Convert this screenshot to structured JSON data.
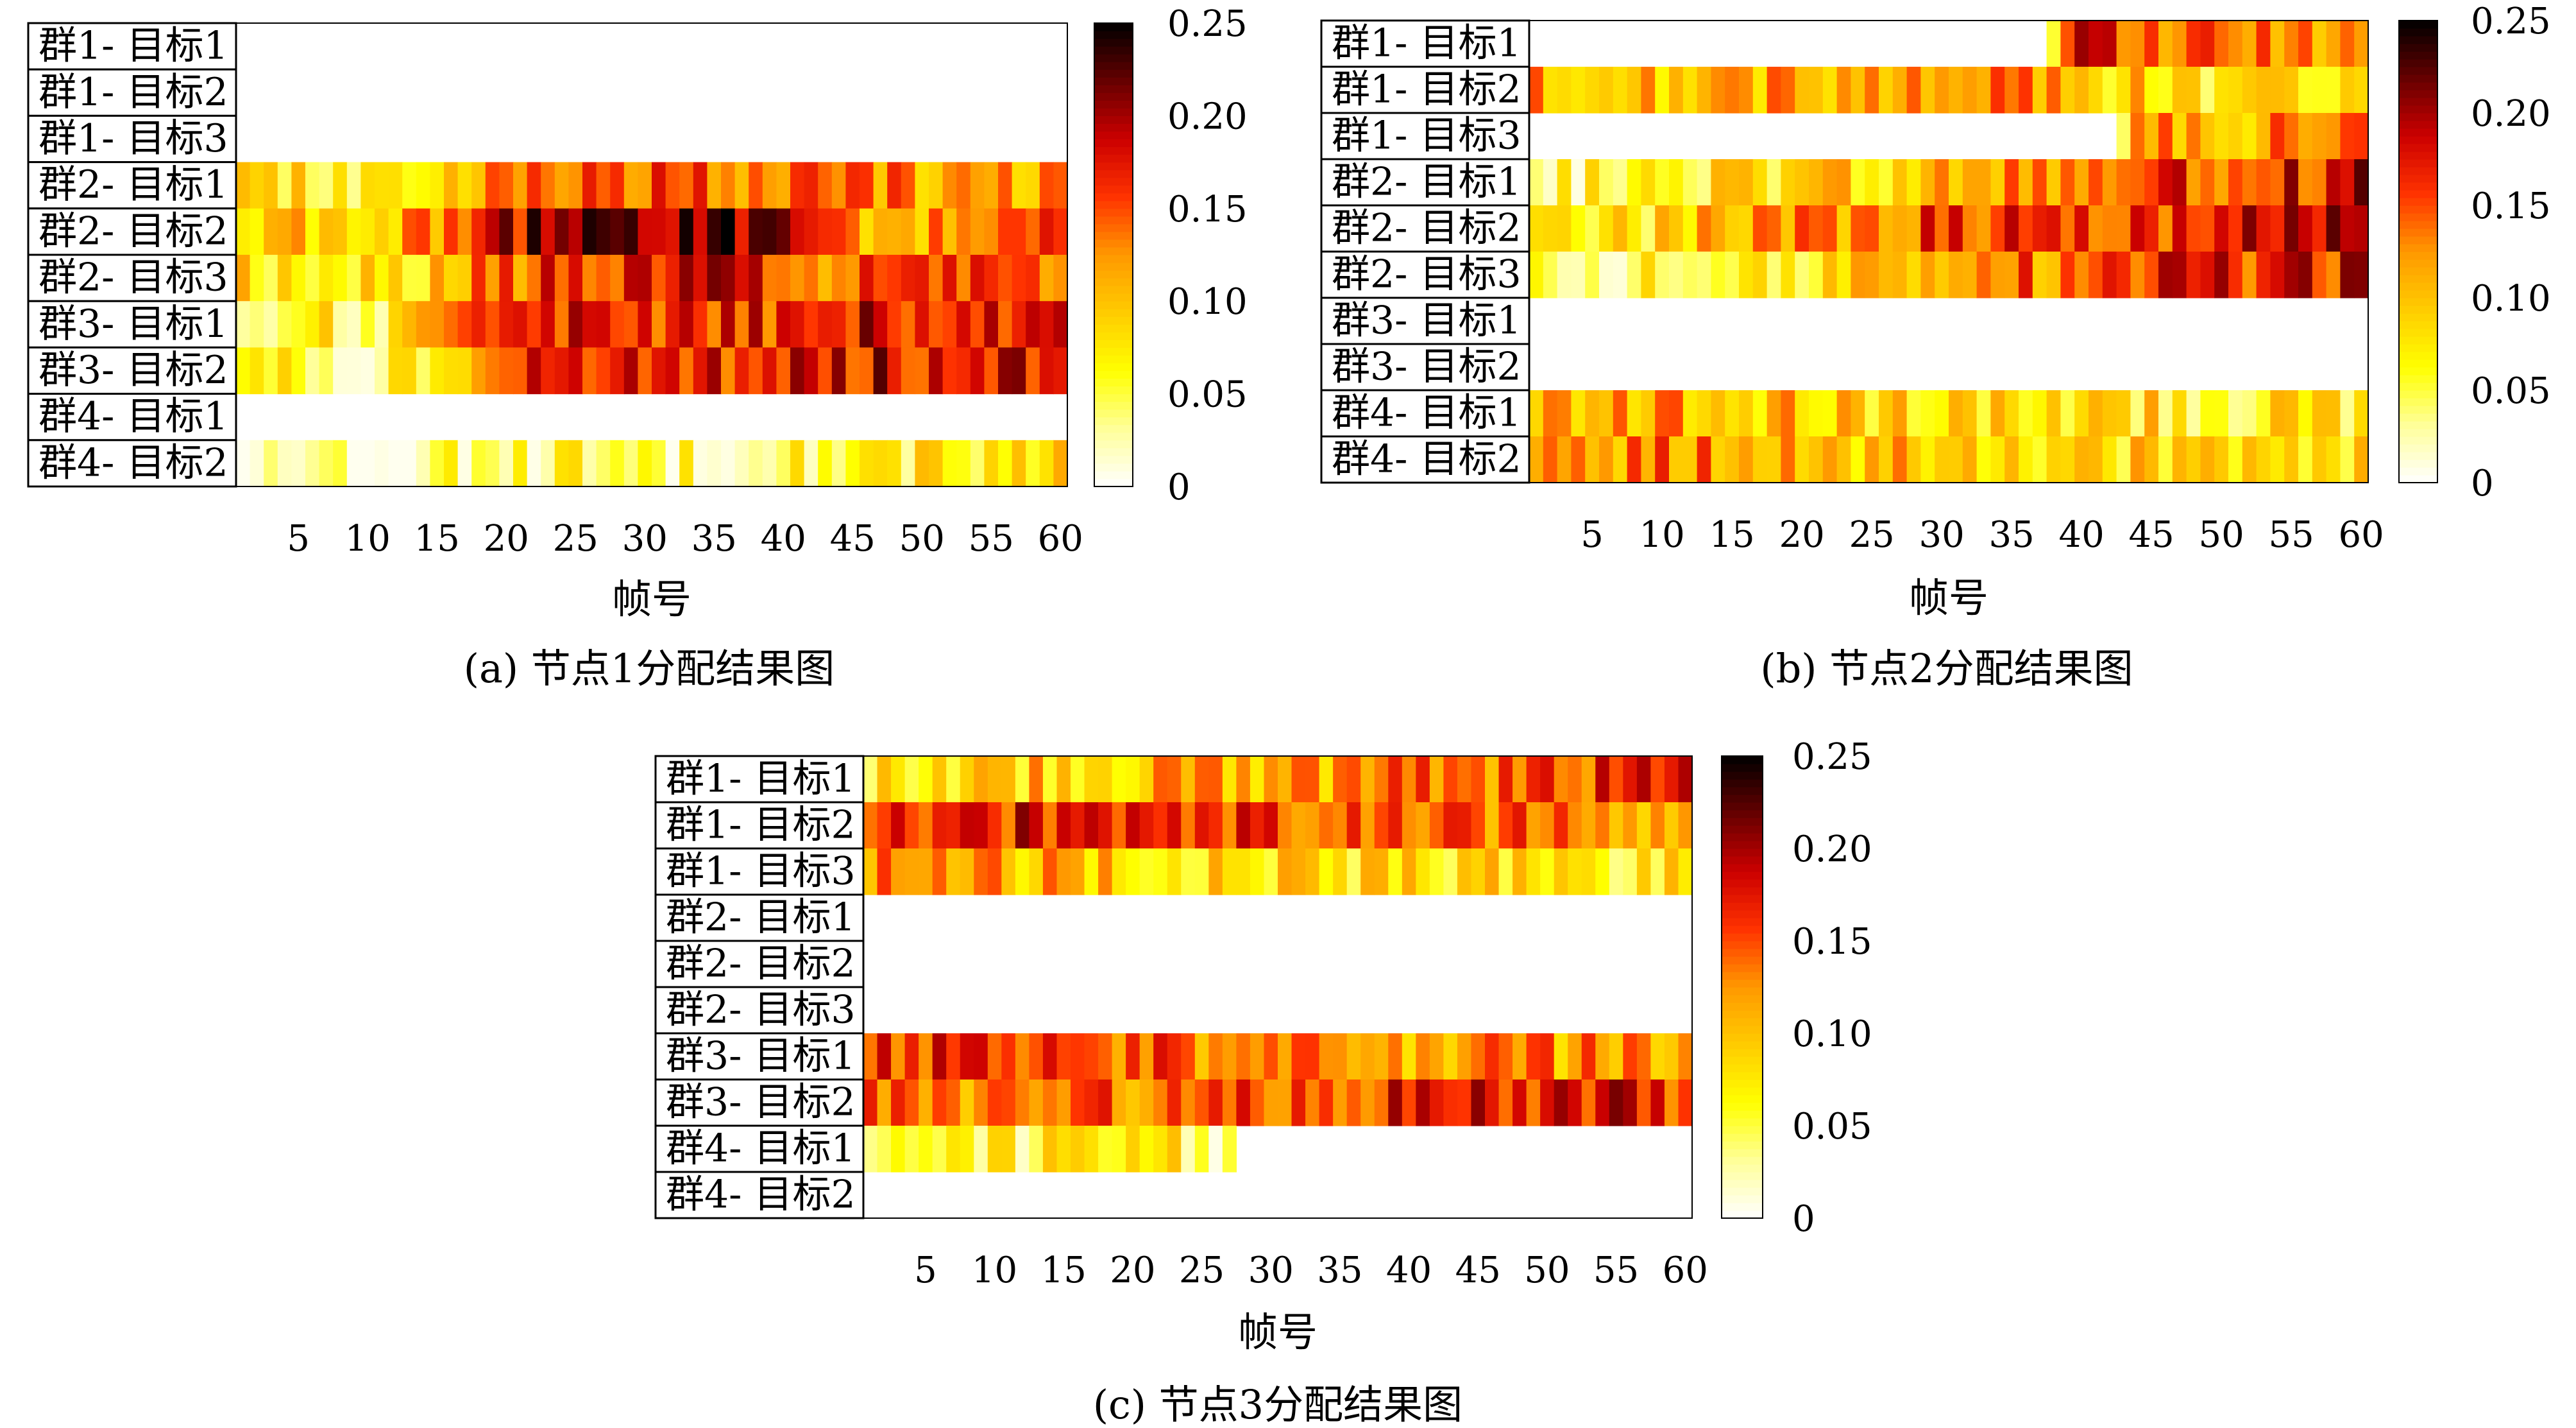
{
  "chart_data": [
    {
      "type": "heatmap",
      "caption": "(a) 节点1分配结果图",
      "xlabel": "帧号",
      "x_range": [
        1,
        60
      ],
      "x_ticks": [
        "5",
        "10",
        "15",
        "20",
        "25",
        "30",
        "35",
        "40",
        "45",
        "50",
        "55",
        "60"
      ],
      "rows": [
        "群1- 目标1",
        "群1- 目标2",
        "群1- 目标3",
        "群2- 目标1",
        "群2- 目标2",
        "群2- 目标3",
        "群3- 目标1",
        "群3- 目标2",
        "群4- 目标1",
        "群4- 目标2"
      ],
      "row_profiles": [
        [
          0,
          0,
          0,
          0,
          0,
          0,
          0,
          0,
          0,
          0,
          0,
          0
        ],
        [
          0,
          0,
          0,
          0,
          0,
          0,
          0,
          0,
          0,
          0,
          0,
          0
        ],
        [
          0,
          0,
          0,
          0,
          0,
          0,
          0,
          0,
          0,
          0,
          0,
          0
        ],
        [
          0.07,
          0.06,
          0.08,
          0.13,
          0.15,
          0.15,
          0.14,
          0.14,
          0.12,
          0.12,
          0.12,
          0.13
        ],
        [
          0.09,
          0.1,
          0.12,
          0.18,
          0.22,
          0.21,
          0.22,
          0.19,
          0.12,
          0.11,
          0.13,
          0.15
        ],
        [
          0.08,
          0.07,
          0.09,
          0.14,
          0.16,
          0.17,
          0.17,
          0.16,
          0.14,
          0.13,
          0.14,
          0.16
        ],
        [
          0.07,
          0.06,
          0.09,
          0.15,
          0.16,
          0.16,
          0.17,
          0.17,
          0.18,
          0.18,
          0.17,
          0.18
        ],
        [
          0.05,
          0.05,
          0.09,
          0.15,
          0.16,
          0.16,
          0.17,
          0.17,
          0.18,
          0.18,
          0.18,
          0.17
        ],
        [
          0,
          0,
          0,
          0,
          0,
          0,
          0,
          0,
          0,
          0,
          0,
          0
        ],
        [
          0.03,
          0.03,
          0.04,
          0.04,
          0.05,
          0.05,
          0.05,
          0.06,
          0.07,
          0.07,
          0.07,
          0.08
        ]
      ],
      "colorbar_ticks": [
        "0",
        "0.05",
        "0.10",
        "0.15",
        "0.20",
        "0.25"
      ],
      "clim": [
        0,
        0.25
      ],
      "colormap": [
        "#ffffff",
        "#ffff99",
        "#ffff00",
        "#ffcc00",
        "#ff9900",
        "#ff3300",
        "#cc0000",
        "#660000",
        "#000000"
      ]
    },
    {
      "type": "heatmap",
      "caption": "(b) 节点2分配结果图",
      "xlabel": "帧号",
      "x_range": [
        1,
        60
      ],
      "x_ticks": [
        "5",
        "10",
        "15",
        "20",
        "25",
        "30",
        "35",
        "40",
        "45",
        "50",
        "55",
        "60"
      ],
      "rows": [
        "群1- 目标1",
        "群1- 目标2",
        "群1- 目标3",
        "群2- 目标1",
        "群2- 目标2",
        "群2- 目标3",
        "群3- 目标1",
        "群3- 目标2",
        "群4- 目标1",
        "群4- 目标2"
      ],
      "row_profiles": [
        [
          0,
          0,
          0,
          0,
          0,
          0,
          0,
          0.16,
          0.14,
          0.13,
          0.12,
          0.1
        ],
        [
          0.12,
          0.11,
          0.12,
          0.11,
          0.11,
          0.11,
          0.12,
          0.1,
          0.09,
          0.08,
          0.08,
          0.07
        ],
        [
          0,
          0,
          0,
          0,
          0,
          0,
          0,
          0,
          0.12,
          0.11,
          0.12,
          0.12
        ],
        [
          0.05,
          0.06,
          0.08,
          0.08,
          0.09,
          0.1,
          0.11,
          0.13,
          0.15,
          0.16,
          0.17,
          0.18
        ],
        [
          0.06,
          0.08,
          0.11,
          0.12,
          0.13,
          0.15,
          0.17,
          0.17,
          0.16,
          0.19,
          0.19,
          0.19
        ],
        [
          0.05,
          0.05,
          0.06,
          0.08,
          0.1,
          0.12,
          0.13,
          0.14,
          0.16,
          0.16,
          0.17,
          0.17
        ],
        [
          0,
          0,
          0,
          0,
          0,
          0,
          0,
          0,
          0,
          0,
          0,
          0
        ],
        [
          0,
          0,
          0,
          0,
          0,
          0,
          0,
          0,
          0,
          0,
          0,
          0
        ],
        [
          0.11,
          0.11,
          0.1,
          0.1,
          0.09,
          0.09,
          0.09,
          0.08,
          0.08,
          0.07,
          0.07,
          0.07
        ],
        [
          0.13,
          0.13,
          0.12,
          0.11,
          0.1,
          0.1,
          0.09,
          0.09,
          0.08,
          0.08,
          0.07,
          0.07
        ]
      ],
      "colorbar_ticks": [
        "0",
        "0.05",
        "0.10",
        "0.15",
        "0.20",
        "0.25"
      ],
      "clim": [
        0,
        0.25
      ],
      "colormap": [
        "#ffffff",
        "#ffff99",
        "#ffff00",
        "#ffcc00",
        "#ff9900",
        "#ff3300",
        "#cc0000",
        "#660000",
        "#000000"
      ]
    },
    {
      "type": "heatmap",
      "caption": "(c) 节点3分配结果图",
      "xlabel": "帧号",
      "x_range": [
        1,
        60
      ],
      "x_ticks": [
        "5",
        "10",
        "15",
        "20",
        "25",
        "30",
        "35",
        "40",
        "45",
        "50",
        "55",
        "60"
      ],
      "rows": [
        "群1- 目标1",
        "群1- 目标2",
        "群1- 目标3",
        "群2- 目标1",
        "群2- 目标2",
        "群2- 目标3",
        "群3- 目标1",
        "群3- 目标2",
        "群4- 目标1",
        "群4- 目标2"
      ],
      "row_profiles": [
        [
          0.08,
          0.09,
          0.1,
          0.1,
          0.11,
          0.12,
          0.12,
          0.13,
          0.14,
          0.15,
          0.16,
          0.17
        ],
        [
          0.17,
          0.17,
          0.16,
          0.16,
          0.15,
          0.15,
          0.15,
          0.14,
          0.14,
          0.13,
          0.13,
          0.12
        ],
        [
          0.12,
          0.11,
          0.1,
          0.09,
          0.09,
          0.08,
          0.08,
          0.08,
          0.08,
          0.07,
          0.07,
          0.07
        ],
        [
          0,
          0,
          0,
          0,
          0,
          0,
          0,
          0,
          0,
          0,
          0,
          0
        ],
        [
          0,
          0,
          0,
          0,
          0,
          0,
          0,
          0,
          0,
          0,
          0,
          0
        ],
        [
          0,
          0,
          0,
          0,
          0,
          0,
          0,
          0,
          0,
          0,
          0,
          0
        ],
        [
          0.16,
          0.16,
          0.15,
          0.15,
          0.14,
          0.13,
          0.13,
          0.12,
          0.12,
          0.12,
          0.12,
          0.12
        ],
        [
          0.13,
          0.13,
          0.14,
          0.14,
          0.15,
          0.15,
          0.16,
          0.16,
          0.17,
          0.17,
          0.17,
          0.17
        ],
        [
          0.05,
          0.05,
          0.06,
          0.06,
          0.06,
          0,
          0,
          0,
          0,
          0,
          0,
          0
        ],
        [
          0,
          0,
          0,
          0,
          0,
          0,
          0,
          0,
          0,
          0,
          0,
          0
        ]
      ],
      "colorbar_ticks": [
        "0",
        "0.05",
        "0.10",
        "0.15",
        "0.20",
        "0.25"
      ],
      "clim": [
        0,
        0.25
      ],
      "colormap": [
        "#ffffff",
        "#ffff99",
        "#ffff00",
        "#ffcc00",
        "#ff9900",
        "#ff3300",
        "#cc0000",
        "#660000",
        "#000000"
      ]
    }
  ]
}
